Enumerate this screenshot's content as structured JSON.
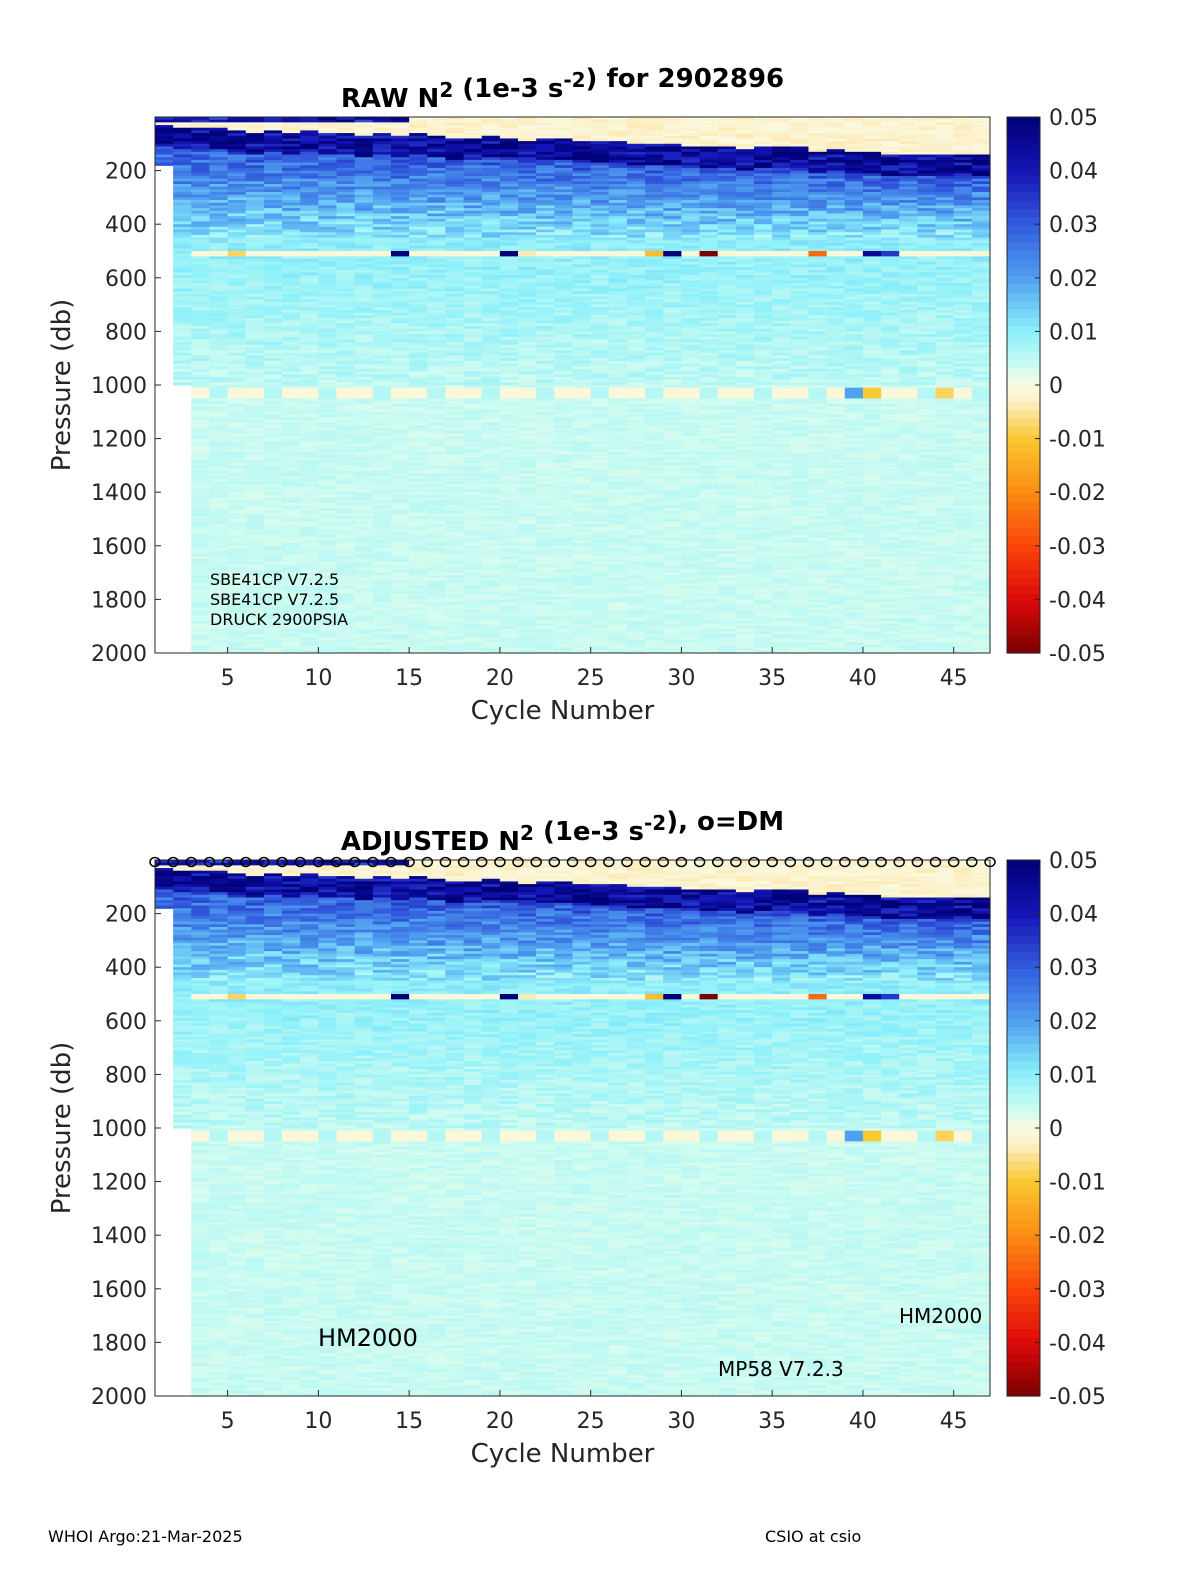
{
  "footer": {
    "left": "WHOI Argo:21-Mar-2025",
    "right": "CSIO at csio"
  },
  "colorbar": {
    "ticks": [
      "0.05",
      "0.04",
      "0.03",
      "0.02",
      "0.01",
      "0",
      "-0.01",
      "-0.02",
      "-0.03",
      "-0.04",
      "-0.05"
    ],
    "range": [
      -0.05,
      0.05
    ]
  },
  "chart_data": [
    {
      "type": "heatmap",
      "title_main": "RAW N",
      "title_sup": "2",
      "title_mid": " (1e-3 s",
      "title_sup2": "-2",
      "title_end": ") for 2902896",
      "xlabel": "Cycle Number",
      "ylabel": "Pressure (db)",
      "xlim": [
        1,
        47
      ],
      "ylim": [
        2000,
        0
      ],
      "xticks": [
        "5",
        "10",
        "15",
        "20",
        "25",
        "30",
        "35",
        "40",
        "45"
      ],
      "yticks": [
        "200",
        "400",
        "600",
        "800",
        "1000",
        "1200",
        "1400",
        "1600",
        "1800",
        "2000"
      ],
      "dm_markers": false,
      "annotations": [
        {
          "text": "SBE41CP V7.2.5"
        },
        {
          "text": "SBE41CP V7.2.5"
        },
        {
          "text": "DRUCK 2900PSIA"
        }
      ]
    },
    {
      "type": "heatmap",
      "title_main": "ADJUSTED N",
      "title_sup": "2",
      "title_mid": " (1e-3 s",
      "title_sup2": "-2",
      "title_end": "), o=DM",
      "xlabel": "Cycle Number",
      "ylabel": "Pressure (db)",
      "xlim": [
        1,
        47
      ],
      "ylim": [
        2000,
        0
      ],
      "xticks": [
        "5",
        "10",
        "15",
        "20",
        "25",
        "30",
        "35",
        "40",
        "45"
      ],
      "yticks": [
        "200",
        "400",
        "600",
        "800",
        "1000",
        "1200",
        "1400",
        "1600",
        "1800",
        "2000"
      ],
      "dm_markers": true,
      "annotations": [
        {
          "text": "HM2000"
        },
        {
          "text": "MP58 V7.2.3"
        },
        {
          "text": "HM2000"
        }
      ]
    }
  ]
}
